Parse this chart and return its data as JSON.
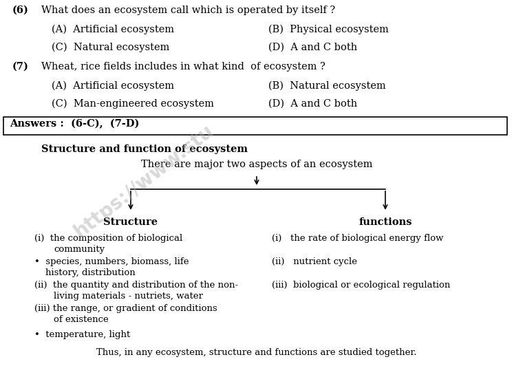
{
  "bg_color": "#ffffff",
  "q6_num": "(6)",
  "q6_text": "What does an ecosystem call which is operated by itself ?",
  "q6_A": "(A)  Artificial ecosystem",
  "q6_B": "(B)  Physical ecosystem",
  "q6_C": "(C)  Natural ecosystem",
  "q6_D": "(D)  A and C both",
  "q7_num": "(7)",
  "q7_text": "Wheat, rice fields includes in what kind  of ecosystem ?",
  "q7_A": "(A)  Artificial ecosystem",
  "q7_B": "(B)  Natural ecosystem",
  "q7_C": "(C)  Man-engineered ecosystem",
  "q7_D": "(D)  A and C both",
  "answers_label": "Answers :  (6-C),  (7-D)",
  "section_title": "Structure and function of ecosystem",
  "intro_text": "There are major two aspects of an ecosystem",
  "left_header": "Structure",
  "right_header": "functions",
  "footer": "Thus, in any ecosystem, structure and functions are studied together.",
  "watermark": "https://www.stu",
  "font_size": 10.5,
  "small_font": 9.5
}
